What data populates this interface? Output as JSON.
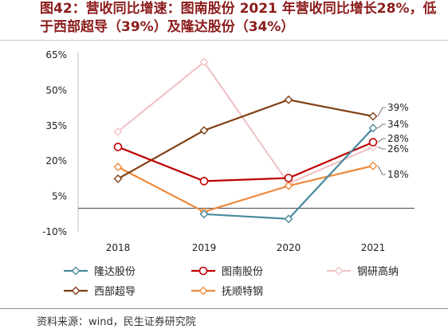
{
  "title": "图42：营收同比增速：图南股份 2021 年营收同比增长28%，低于西部超导（39%）及隆达股份（34%）",
  "source": "资料来源：wind，民生证券研究院",
  "chart_data": {
    "type": "line",
    "x": [
      "2018",
      "2019",
      "2020",
      "2021"
    ],
    "ylim": [
      -10,
      65
    ],
    "yticks": [
      "65%",
      "50%",
      "35%",
      "20%",
      "5%",
      "-10%"
    ],
    "ytick_values": [
      65,
      50,
      35,
      20,
      5,
      -10
    ],
    "grid": false,
    "legend_position": "bottom",
    "series": [
      {
        "name": "隆达股份",
        "color": "#4a8a9e",
        "marker": "diamond-open",
        "values": [
          null,
          -2.5,
          -4.5,
          34
        ]
      },
      {
        "name": "图南股份",
        "color": "#c00000",
        "marker": "circle-open",
        "values": [
          26,
          11.5,
          12.8,
          28
        ]
      },
      {
        "name": "钢研高纳",
        "color": "#f1c4c8",
        "marker": "diamond-open",
        "values": [
          32.5,
          62,
          10.5,
          26
        ]
      },
      {
        "name": "西部超导",
        "color": "#7f3f13",
        "marker": "diamond-open",
        "values": [
          12.5,
          33,
          46,
          39
        ]
      },
      {
        "name": "抚顺特钢",
        "color": "#ed8a3d",
        "marker": "diamond-open",
        "values": [
          17.5,
          -1.5,
          9.5,
          18
        ]
      }
    ],
    "annotations": [
      {
        "series": "西部超导",
        "text": "39%"
      },
      {
        "series": "隆达股份",
        "text": "34%"
      },
      {
        "series": "图南股份",
        "text": "28%"
      },
      {
        "series": "钢研高纳",
        "text": "26%"
      },
      {
        "series": "抚顺特钢",
        "text": "18%"
      }
    ]
  }
}
